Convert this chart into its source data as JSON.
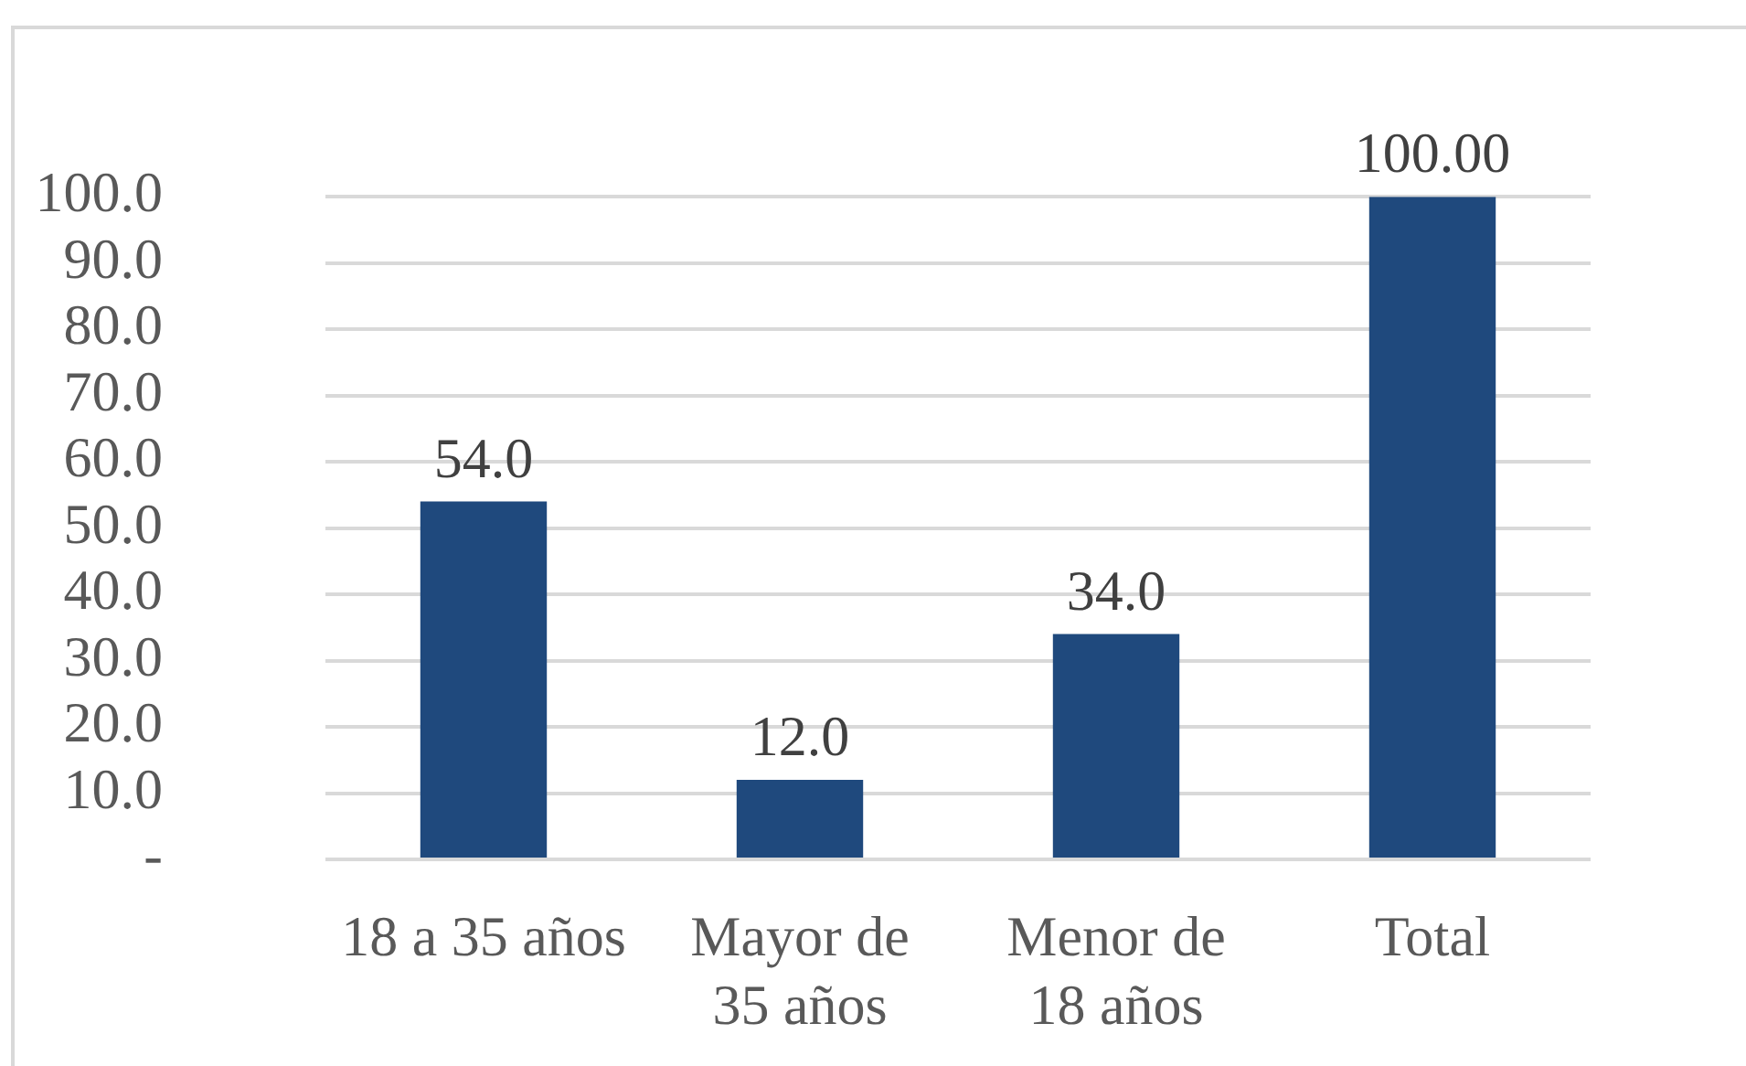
{
  "chart_data": {
    "type": "bar",
    "categories": [
      "18 a 35 años",
      "Mayor de 35 años",
      "Menor de 18 años",
      "Total"
    ],
    "values": [
      54,
      12,
      34,
      100
    ],
    "value_labels": [
      "54.0",
      "12.0",
      "34.0",
      "100.00"
    ],
    "color": "#1f497d",
    "ylim": [
      0,
      100
    ],
    "yticks": [
      {
        "value": 0,
        "label": "-"
      },
      {
        "value": 10,
        "label": "10.0"
      },
      {
        "value": 20,
        "label": "20.0"
      },
      {
        "value": 30,
        "label": "30.0"
      },
      {
        "value": 40,
        "label": "40.0"
      },
      {
        "value": 50,
        "label": "50.0"
      },
      {
        "value": 60,
        "label": "60.0"
      },
      {
        "value": 70,
        "label": "70.0"
      },
      {
        "value": 80,
        "label": "80.0"
      },
      {
        "value": 90,
        "label": "90.0"
      },
      {
        "value": 100,
        "label": "100.0"
      }
    ],
    "grid": "y"
  }
}
